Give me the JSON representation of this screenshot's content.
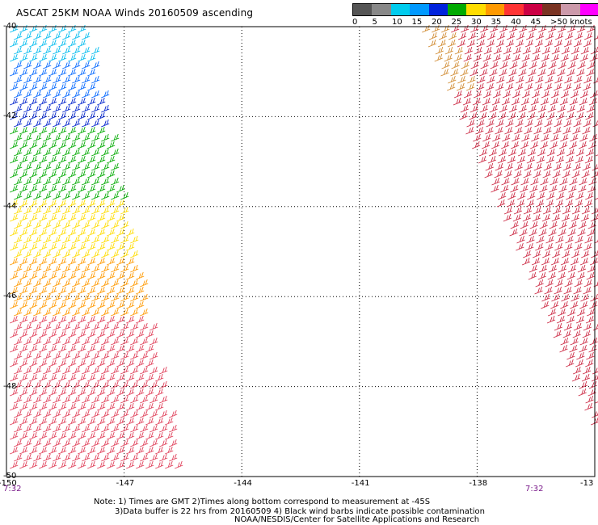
{
  "title": "ASCAT 25KM NOAA Winds 20160509 ascending",
  "color_scale": {
    "labels": [
      "0",
      "5",
      "10",
      "15",
      "20",
      "25",
      "30",
      "35",
      "40",
      "45",
      ">50 knots"
    ],
    "colors": [
      "#555555",
      "#888888",
      "#00ccee",
      "#0099ff",
      "#0022dd",
      "#00aa00",
      "#ffdd00",
      "#ff9900",
      "#ff3333",
      "#cc0044",
      "#7a3322",
      "#cc99aa",
      "#ff00ff",
      "#660099"
    ]
  },
  "map": {
    "lat_range": [
      -50,
      -40
    ],
    "lon_range": [
      -150,
      -135
    ],
    "lat_ticks": [
      "-40",
      "-42",
      "-44",
      "-46",
      "-48",
      "-50"
    ],
    "lon_ticks": [
      "-150",
      "-147",
      "-144",
      "-141",
      "-138",
      "-13"
    ],
    "grid_style": "dotted"
  },
  "pass_times": [
    "7:32",
    "7:32"
  ],
  "notes": {
    "line1": "Note: 1) Times are GMT 2)Times along bottom correspond to measurement at -45S",
    "line2": "3)Data buffer is 22 hrs from 20160509 4) Black wind barbs indicate possible contamination",
    "credit": "NOAA/NESDIS/Center for Satellite Applications and Research"
  }
}
